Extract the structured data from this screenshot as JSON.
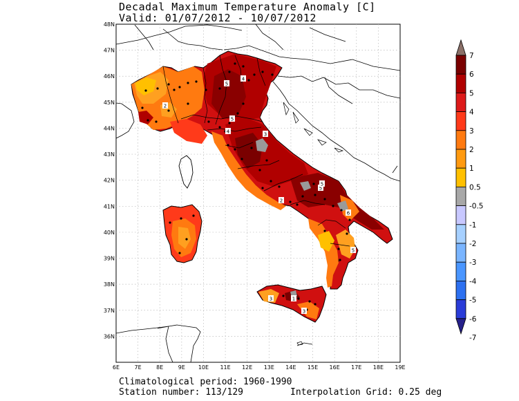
{
  "title": "Decadal Maximum Temperature Anomaly [C]",
  "valid": "Valid: 01/07/2012 - 10/07/2012",
  "footer": {
    "period": "Climatological period: 1960-1990",
    "stations": "Station number: 113/129",
    "grid": "Interpolation Grid: 0.25 deg"
  },
  "map": {
    "lon_labels": [
      "6E",
      "7E",
      "8E",
      "9E",
      "10E",
      "11E",
      "12E",
      "13E",
      "14E",
      "15E",
      "16E",
      "17E",
      "18E",
      "19E"
    ],
    "lat_labels": [
      "48N",
      "47N",
      "46N",
      "45N",
      "44N",
      "43N",
      "42N",
      "41N",
      "40N",
      "39N",
      "38N",
      "37N",
      "36N"
    ],
    "contour_labels": [
      "4",
      "5",
      "2",
      "5",
      "4",
      "3",
      "5",
      "6",
      "5",
      "2",
      "5",
      "3",
      "3",
      "1"
    ]
  },
  "colorbar": {
    "labels": [
      "7",
      "6",
      "5",
      "4",
      "3",
      "2",
      "1",
      "0.5",
      "-0.5",
      "-1",
      "-2",
      "-3",
      "-4",
      "-5",
      "-6",
      "-7"
    ],
    "colors": [
      "#8b7068",
      "#7a0000",
      "#b00000",
      "#dd1a1a",
      "#ff3a1a",
      "#ff7a10",
      "#ff9a10",
      "#ffc000",
      "#a8a8a8",
      "#c8c8ff",
      "#a6d0ff",
      "#7ab5ff",
      "#4a96ff",
      "#2d70f0",
      "#2a3cd8",
      "#26208a"
    ]
  }
}
